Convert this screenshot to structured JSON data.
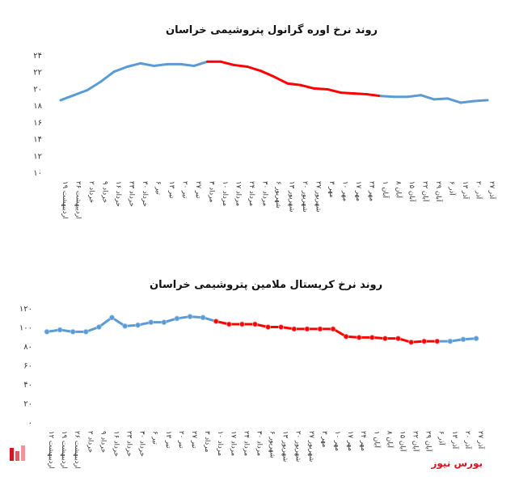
{
  "brand": "بورس نیوز",
  "colors": {
    "base": "#5b9bd5",
    "highlight": "#ff0000",
    "marker_stroke": "#ffffff"
  },
  "chart_data": [
    {
      "type": "line",
      "title": "روند نرخ اوره گرانول پتروشیمی خراسان",
      "ylim": [
        10,
        24
      ],
      "yticks": [
        10,
        12,
        14,
        16,
        18,
        20,
        22,
        24
      ],
      "ytick_labels": [
        "۱۰",
        "۱۲",
        "۱۴",
        "۱۶",
        "۱۸",
        "۲۰",
        "۲۲",
        "۲۴"
      ],
      "markers": false,
      "highlight_range": [
        11,
        24
      ],
      "categories": [
        "۱۹ اردیبهشت",
        "۲۶ اردیبهشت",
        "۲ خرداد",
        "۹ خرداد",
        "۱۶ خرداد",
        "۲۳ خرداد",
        "۳۰ خرداد",
        "۶ تیر",
        "۱۳ تیر",
        "۲۰ تیر",
        "۲۷ تیر",
        "۳ مرداد",
        "۱۰ مرداد",
        "۱۷ مرداد",
        "۲۴ مرداد",
        "۳۰ مرداد",
        "۶ شهریور",
        "۱۳ شهریور",
        "۲۰ شهریور",
        "۲۷ شهریور",
        "۳ مهر",
        "۱۰ مهر",
        "۱۷ مهر",
        "۲۴ مهر",
        "۱ آبان",
        "۸ آبان",
        "۱۵ آبان",
        "۲۲ آبان",
        "۲۹ آبان",
        "۶ آذر",
        "۱۳ آذر",
        "۲۰ آذر",
        "۲۷ آذر"
      ],
      "values": [
        18.6,
        19.2,
        19.8,
        20.8,
        22.0,
        22.6,
        23.0,
        22.7,
        22.9,
        22.9,
        22.7,
        23.2,
        23.2,
        22.8,
        22.6,
        22.1,
        21.4,
        20.6,
        20.4,
        20.0,
        19.9,
        19.5,
        19.4,
        19.3,
        19.1,
        19.0,
        19.0,
        19.2,
        18.7,
        18.8,
        18.3,
        18.5,
        18.6
      ]
    },
    {
      "type": "line",
      "title": "روند نرخ کریستال ملامین پتروشیمی خراسان",
      "ylim": [
        0,
        120
      ],
      "yticks": [
        0,
        20,
        40,
        60,
        80,
        100,
        120
      ],
      "ytick_labels": [
        "۰",
        "۲۰",
        "۴۰",
        "۶۰",
        "۸۰",
        "۱۰۰",
        "۱۲۰"
      ],
      "markers": true,
      "highlight_range": [
        13,
        30
      ],
      "categories": [
        "۱۲ اردیبهشت",
        "۱۹ اردیبهشت",
        "۲۶ اردیبهشت",
        "۲ خرداد",
        "۹ خرداد",
        "۱۶ خرداد",
        "۲۳ خرداد",
        "۳۰ خرداد",
        "۶ تیر",
        "۱۳ تیر",
        "۲۰ تیر",
        "۲۷ تیر",
        "۳ مرداد",
        "۱۰ مرداد",
        "۱۷ مرداد",
        "۲۴ مرداد",
        "۳۰ مرداد",
        "۶ شهریور",
        "۱۳ شهریور",
        "۲۰ شهریور",
        "۲۷ شهریور",
        "۳ مهر",
        "۱۰ مهر",
        "۱۷ مهر",
        "۲۴ مهر",
        "۱ آبان",
        "۸ آبان",
        "۱۵ آبان",
        "۲۲ آبان",
        "۲۹ آبان",
        "۶ آذر",
        "۱۳ آذر",
        "۲۰ آذر",
        "۲۷ آذر"
      ],
      "values": [
        95,
        97,
        95,
        95,
        100,
        110,
        101,
        102,
        105,
        105,
        109,
        111,
        110,
        106,
        103,
        103,
        103,
        100,
        100,
        98,
        98,
        98,
        98,
        90,
        89,
        89,
        88,
        88,
        84,
        85,
        85,
        85,
        87,
        88
      ]
    }
  ]
}
